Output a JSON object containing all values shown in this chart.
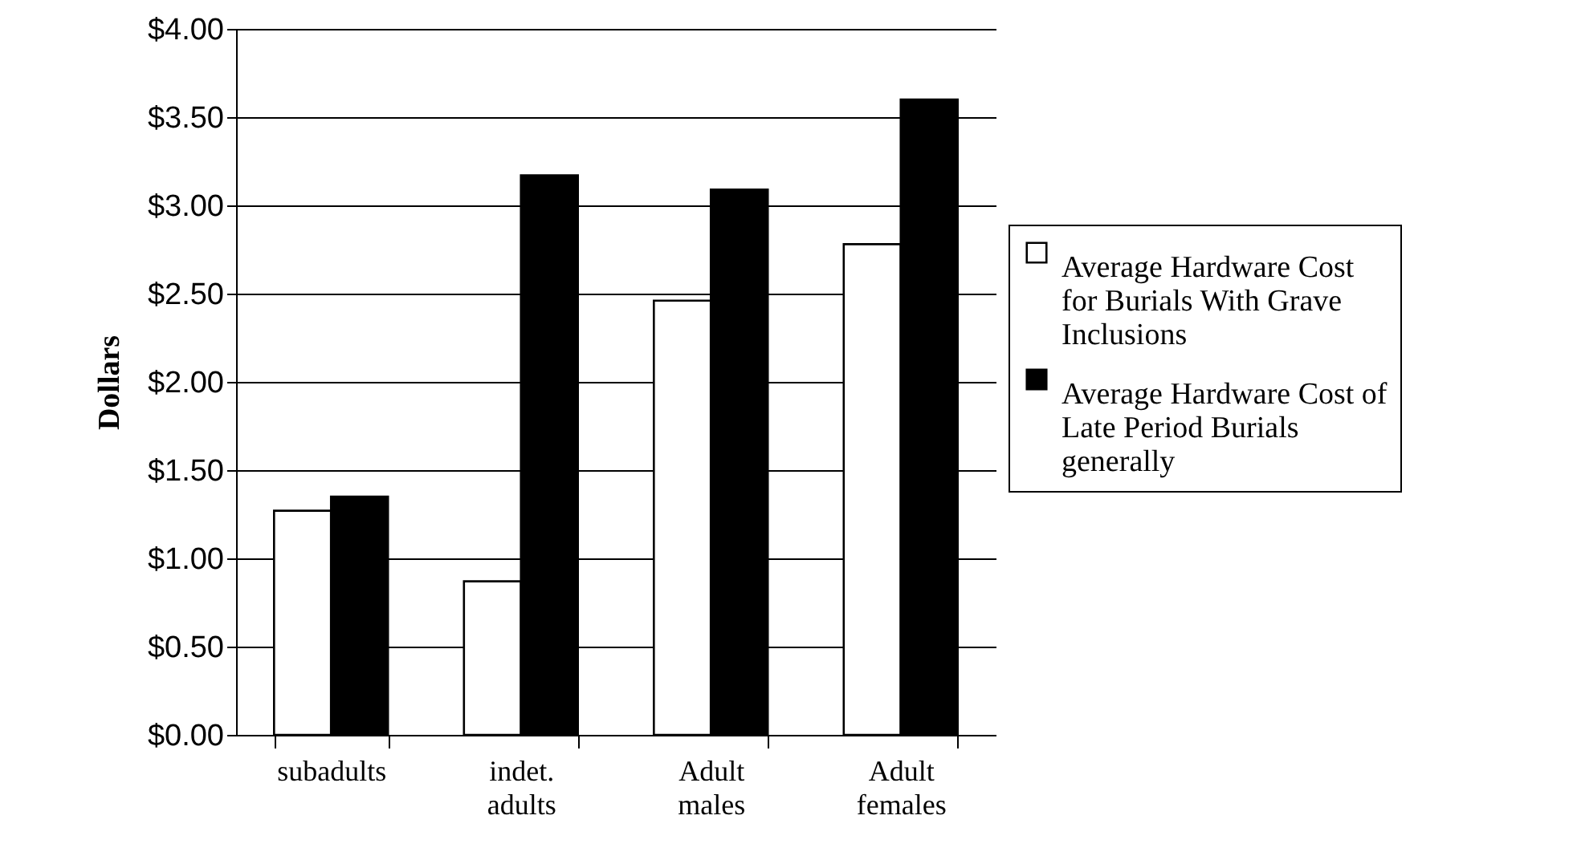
{
  "chart_data": {
    "type": "bar",
    "ylabel": "Dollars",
    "categories": [
      "subadults",
      "indet. adults",
      "Adult males",
      "Adult females"
    ],
    "series": [
      {
        "name": "Average Hardware Cost for Burials With Grave Inclusions",
        "color": "#ffffff",
        "values": [
          1.27,
          0.87,
          2.46,
          2.78
        ]
      },
      {
        "name": "Average Hardware Cost of Late Period Burials generally",
        "color": "#000000",
        "values": [
          1.35,
          3.17,
          3.09,
          3.6
        ]
      }
    ],
    "ylim": [
      0,
      4
    ],
    "yticks": [
      {
        "value": 0,
        "label": "$0.00"
      },
      {
        "value": 0.5,
        "label": "$0.50"
      },
      {
        "value": 1,
        "label": "$1.00"
      },
      {
        "value": 1.5,
        "label": "$1.50"
      },
      {
        "value": 2,
        "label": "$2.00"
      },
      {
        "value": 2.5,
        "label": "$2.50"
      },
      {
        "value": 3,
        "label": "$3.00"
      },
      {
        "value": 3.5,
        "label": "$3.50"
      },
      {
        "value": 4,
        "label": "$4.00"
      }
    ],
    "grid": "y",
    "legend": "right"
  }
}
